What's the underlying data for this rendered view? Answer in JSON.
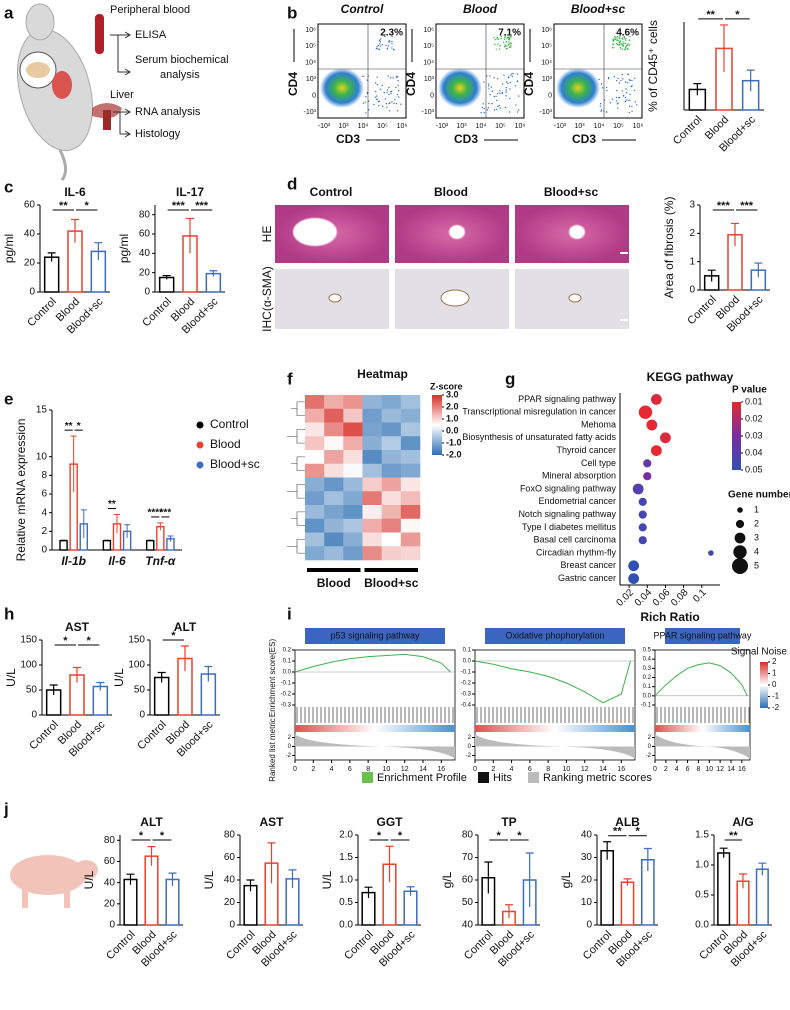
{
  "panel_labels": [
    "a",
    "b",
    "c",
    "d",
    "e",
    "f",
    "g",
    "h",
    "i",
    "j"
  ],
  "schematic": {
    "blood": "Peripheral blood",
    "elisa": "ELISA",
    "serum": [
      "Serum biochemical",
      "analysis"
    ],
    "liver": "Liver",
    "rna": "RNA analysis",
    "histology": "Histology"
  },
  "flow": {
    "titles": [
      "Control",
      "Blood",
      "Blood+sc"
    ],
    "percentages": [
      "2.3%",
      "7.1%",
      "4.6%"
    ],
    "x_label": "CD3",
    "y_label": "CD4",
    "xticks": [
      "-10³",
      "10³",
      "10⁴",
      "10⁵",
      "10⁶"
    ],
    "yticks": [
      "10⁶",
      "10⁵",
      "10⁴",
      "10³",
      "0",
      "-10³"
    ]
  },
  "histology": {
    "columns": [
      "Control",
      "Blood",
      "Blood+sc"
    ],
    "rows": [
      "HE",
      "IHC(α-SMA)"
    ]
  },
  "gsea_legend": [
    "Enrichment Profile",
    "Hits",
    "Ranking metric scores"
  ],
  "signal_noise": {
    "title": "Signal Noise",
    "ticks": [
      2,
      1,
      0,
      -1,
      -2
    ]
  },
  "chart_data": [
    {
      "type": "bar",
      "y_label": "% of CD45⁺ cells",
      "categories": [
        "Control",
        "Blood",
        "Blood+sc"
      ],
      "values": [
        3.5,
        10.5,
        5.0
      ],
      "errors": [
        1.0,
        4.0,
        1.8
      ],
      "colors": [
        "#000000",
        "#e8412c",
        "#3b6cc0"
      ],
      "annotations": [
        "**",
        "*"
      ],
      "ylim": [
        0,
        15
      ]
    },
    {
      "type": "bar",
      "title": "IL-6",
      "y_label": "pg/ml",
      "categories": [
        "Control",
        "Blood",
        "Blood+sc"
      ],
      "values": [
        24,
        42,
        28
      ],
      "errors": [
        3,
        8,
        6
      ],
      "colors": [
        "#000000",
        "#e8412c",
        "#3b6cc0"
      ],
      "annotations": [
        "**",
        "*"
      ],
      "ylim": [
        0,
        60
      ],
      "yticks": [
        0,
        20,
        40,
        60
      ]
    },
    {
      "type": "bar",
      "title": "IL-17",
      "y_label": "pg/ml",
      "categories": [
        "Control",
        "Blood",
        "Blood+sc"
      ],
      "values": [
        15,
        58,
        19
      ],
      "errors": [
        2,
        18,
        3
      ],
      "colors": [
        "#000000",
        "#e8412c",
        "#3b6cc0"
      ],
      "annotations": [
        "***",
        "***"
      ],
      "ylim": [
        0,
        90
      ],
      "yticks": [
        0,
        20,
        40,
        60,
        80
      ]
    },
    {
      "type": "bar",
      "y_label": "Area of fibrosis (%)",
      "categories": [
        "Control",
        "Blood",
        "Blood+sc"
      ],
      "values": [
        0.5,
        1.95,
        0.7
      ],
      "errors": [
        0.2,
        0.4,
        0.25
      ],
      "colors": [
        "#000000",
        "#e8412c",
        "#3b6cc0"
      ],
      "annotations": [
        "***",
        "***"
      ],
      "ylim": [
        0,
        3
      ],
      "yticks": [
        0,
        1,
        2,
        3
      ]
    },
    {
      "type": "grouped_bar",
      "y_label": "Relative mRNA expression",
      "categories": [
        "Il-1b",
        "Il-6",
        "Tnf-α"
      ],
      "series": [
        {
          "name": "Control",
          "color": "#000000",
          "values": [
            1,
            1,
            1
          ],
          "errors": [
            0.05,
            0.05,
            0.05
          ]
        },
        {
          "name": "Blood",
          "color": "#e8412c",
          "values": [
            9.2,
            2.8,
            2.5
          ],
          "errors": [
            3,
            1,
            0.4
          ]
        },
        {
          "name": "Blood+sc",
          "color": "#3b6cc0",
          "values": [
            2.8,
            2.0,
            1.2
          ],
          "errors": [
            1.5,
            0.7,
            0.3
          ]
        }
      ],
      "annotations": [
        [
          "**",
          "*"
        ],
        [
          "**",
          null
        ],
        [
          "****",
          "***"
        ]
      ],
      "ylim": [
        0,
        15
      ],
      "yticks": [
        0,
        2,
        4,
        6,
        8,
        10,
        15
      ]
    },
    {
      "type": "heatmap",
      "title": "Heatmap",
      "colorbar_title": "Z-score",
      "groups": [
        "Blood",
        "Blood+sc"
      ],
      "colorbar_ticks": [
        {
          "value": 3,
          "label": "3.0"
        },
        {
          "value": 2,
          "label": "2.0"
        },
        {
          "value": 1,
          "label": "1.0"
        },
        {
          "value": 0,
          "label": "0.0"
        },
        {
          "value": -1,
          "label": "-1.0"
        },
        {
          "value": -2,
          "label": "-2.0"
        }
      ],
      "values": [
        [
          2.2,
          1.5,
          1.8,
          -0.8,
          -1.0,
          -0.6
        ],
        [
          1.5,
          2.4,
          1.2,
          -1.2,
          -0.7,
          -0.9
        ],
        [
          0.8,
          1.9,
          2.6,
          -1.1,
          -1.3,
          -0.5
        ],
        [
          1.2,
          0.6,
          1.5,
          -0.9,
          -0.4,
          -1.4
        ],
        [
          0.5,
          1.6,
          0.9,
          -1.5,
          -0.8,
          -0.6
        ],
        [
          1.8,
          0.9,
          0.4,
          -0.6,
          -1.2,
          -1.0
        ],
        [
          -0.9,
          -1.3,
          -0.7,
          1.1,
          1.6,
          0.8
        ],
        [
          -1.2,
          -0.6,
          -1.0,
          2.1,
          0.9,
          1.3
        ],
        [
          -0.7,
          -1.1,
          -1.4,
          0.7,
          1.4,
          2.3
        ],
        [
          -1.4,
          -0.8,
          -0.5,
          1.5,
          2.0,
          0.6
        ],
        [
          -0.6,
          -1.5,
          -0.9,
          0.9,
          0.5,
          1.7
        ],
        [
          -1.0,
          -0.7,
          -1.2,
          1.9,
          1.1,
          1.0
        ]
      ]
    },
    {
      "type": "dot",
      "title": "KEGG pathway",
      "x_label": "Rich Ratio",
      "categories": [
        "PPAR signaling pathway",
        "Transcriptional misregulation in cancer",
        "Mehoma",
        "Biosynthesis of unsaturated fatty acids",
        "Thyroid cancer",
        "Cell type",
        "Mineral absorption",
        "FoxO signaling pathway",
        "Endometrial cancer",
        "Notch signaling pathway",
        "Type I diabetes mellitus",
        "Basal cell carcinoma",
        "Circadian rhythm-fly",
        "Breast cancer",
        "Gastric cancer"
      ],
      "values": [
        0.05,
        0.038,
        0.045,
        0.06,
        0.05,
        0.04,
        0.04,
        0.03,
        0.035,
        0.035,
        0.035,
        0.035,
        0.11,
        0.025,
        0.025
      ],
      "p_values": [
        0.012,
        0.008,
        0.01,
        0.012,
        0.01,
        0.035,
        0.03,
        0.04,
        0.045,
        0.045,
        0.045,
        0.045,
        0.045,
        0.05,
        0.05
      ],
      "gene_numbers": [
        3,
        4,
        3,
        3,
        3,
        2,
        2,
        3,
        2,
        2,
        2,
        2,
        1,
        3,
        3
      ],
      "xlim": [
        0.01,
        0.12
      ],
      "xticks": [
        0.02,
        0.04,
        0.06,
        0.08,
        0.1
      ],
      "color_title": "P value",
      "color_ticks": [
        0.01,
        0.02,
        0.03,
        0.04,
        0.05
      ],
      "size_title": "Gene number",
      "size_ticks": [
        1,
        2,
        3,
        4,
        5
      ]
    },
    {
      "type": "bar",
      "title": "AST",
      "y_label": "U/L",
      "categories": [
        "Control",
        "Blood",
        "Blood+sc"
      ],
      "values": [
        50,
        80,
        57
      ],
      "errors": [
        10,
        15,
        8
      ],
      "colors": [
        "#000000",
        "#e8412c",
        "#3b6cc0"
      ],
      "annotations": [
        "*",
        "*"
      ],
      "ylim": [
        0,
        150
      ],
      "yticks": [
        0,
        50,
        100,
        150
      ]
    },
    {
      "type": "bar",
      "title": "ALT",
      "y_label": "U/L",
      "categories": [
        "Control",
        "Blood",
        "Blood+sc"
      ],
      "values": [
        75,
        113,
        82
      ],
      "errors": [
        10,
        25,
        15
      ],
      "colors": [
        "#000000",
        "#e8412c",
        "#3b6cc0"
      ],
      "annotations": [
        "*",
        null
      ],
      "ylim": [
        0,
        150
      ],
      "yticks": [
        0,
        50,
        100,
        150
      ]
    },
    {
      "type": "gsea",
      "title": "p53 signaling pathway",
      "y_label": "Enrichment score(ES)",
      "metric_label": "Ranked list metric",
      "x": [
        0,
        2,
        4,
        6,
        8,
        10,
        12,
        14,
        16,
        17
      ],
      "values": [
        0,
        0.05,
        0.09,
        0.12,
        0.14,
        0.15,
        0.16,
        0.14,
        0.08,
        0
      ],
      "xlim": [
        0,
        17.5
      ],
      "xticks": [
        0,
        2,
        4,
        6,
        8,
        10,
        12,
        14,
        16
      ],
      "ylim": [
        -0.3,
        0.2
      ],
      "yticks": [
        0.2,
        0.1,
        {
          "value": 0,
          "label": "0.0"
        },
        -0.1,
        -0.2,
        -0.3
      ],
      "metric_ticks": [
        2,
        0,
        -2
      ]
    },
    {
      "type": "gsea",
      "title": "Oxidative phophorylation",
      "x": [
        0,
        2,
        4,
        6,
        8,
        10,
        12,
        14,
        16,
        17
      ],
      "values": [
        0,
        -0.03,
        -0.07,
        -0.1,
        -0.14,
        -0.2,
        -0.28,
        -0.38,
        -0.3,
        0
      ],
      "xlim": [
        0,
        17.5
      ],
      "xticks": [
        0,
        2,
        4,
        6,
        8,
        10,
        12,
        14,
        16
      ],
      "ylim": [
        -0.4,
        0.1
      ],
      "yticks": [
        0.1,
        {
          "value": 0,
          "label": "0.0"
        },
        -0.1,
        -0.2,
        -0.3,
        -0.4
      ],
      "metric_ticks": [
        2,
        0,
        -2
      ]
    },
    {
      "type": "gsea",
      "title": "PPAR signaling pathway",
      "x": [
        0,
        2,
        4,
        6,
        8,
        10,
        12,
        14,
        16,
        17
      ],
      "values": [
        0,
        0.12,
        0.22,
        0.3,
        0.34,
        0.36,
        0.33,
        0.25,
        0.12,
        0
      ],
      "xlim": [
        0,
        17.5
      ],
      "xticks": [
        0,
        2,
        4,
        6,
        8,
        10,
        12,
        14,
        16
      ],
      "ylim": [
        -0.1,
        0.5
      ],
      "yticks": [
        0.5,
        0.4,
        0.3,
        0.2,
        0.1,
        {
          "value": 0,
          "label": "0.0"
        },
        -0.1
      ],
      "metric_ticks": [
        2,
        0,
        -2
      ]
    },
    {
      "type": "bar",
      "title": "ALT",
      "y_label": "U/L",
      "categories": [
        "Control",
        "Blood",
        "Blood+sc"
      ],
      "values": [
        43,
        65,
        43
      ],
      "errors": [
        5,
        9,
        6
      ],
      "colors": [
        "#000000",
        "#e8412c",
        "#3b6cc0"
      ],
      "annotations": [
        "*",
        "*"
      ],
      "ylim": [
        0,
        85
      ],
      "yticks": [
        0,
        20,
        40,
        60,
        80
      ]
    },
    {
      "type": "bar",
      "title": "AST",
      "y_label": "U/L",
      "categories": [
        "Control",
        "Blood",
        "Blood+sc"
      ],
      "values": [
        35,
        55,
        41
      ],
      "errors": [
        5,
        18,
        8
      ],
      "colors": [
        "#000000",
        "#e8412c",
        "#3b6cc0"
      ],
      "annotations": [
        null,
        null
      ],
      "ylim": [
        0,
        80
      ],
      "yticks": [
        0,
        20,
        40,
        60,
        80
      ]
    },
    {
      "type": "bar",
      "title": "GGT",
      "y_label": "U/L",
      "categories": [
        "Control",
        "Blood",
        "Blood+sc"
      ],
      "values": [
        0.72,
        1.35,
        0.75
      ],
      "errors": [
        0.12,
        0.4,
        0.1
      ],
      "colors": [
        "#000000",
        "#e8412c",
        "#3b6cc0"
      ],
      "annotations": [
        "*",
        "*"
      ],
      "ylim": [
        0,
        2
      ],
      "yticks": [
        {
          "value": 0,
          "label": "0.0"
        },
        0.5,
        {
          "value": 1,
          "label": "1.0"
        },
        1.5,
        {
          "value": 2,
          "label": "2.0"
        }
      ]
    },
    {
      "type": "bar",
      "title": "TP",
      "y_label": "g/L",
      "categories": [
        "Control",
        "Blood",
        "Blood+sc"
      ],
      "values": [
        61,
        46,
        60
      ],
      "errors": [
        7,
        3,
        12
      ],
      "colors": [
        "#000000",
        "#e8412c",
        "#3b6cc0"
      ],
      "annotations": [
        "*",
        "*"
      ],
      "ylim": [
        40,
        80
      ],
      "yticks": [
        40,
        50,
        60,
        70,
        80
      ]
    },
    {
      "type": "bar",
      "title": "ALB",
      "y_label": "g/L",
      "categories": [
        "Control",
        "Blood",
        "Blood+sc"
      ],
      "values": [
        33,
        19,
        29
      ],
      "errors": [
        4,
        1.5,
        5
      ],
      "colors": [
        "#000000",
        "#e8412c",
        "#3b6cc0"
      ],
      "annotations": [
        "**",
        "*"
      ],
      "ylim": [
        0,
        40
      ],
      "yticks": [
        0,
        10,
        20,
        30,
        40
      ]
    },
    {
      "type": "bar",
      "title": "A/G",
      "y_label": "",
      "categories": [
        "Control",
        "Blood",
        "Blood+sc"
      ],
      "values": [
        1.2,
        0.73,
        0.93
      ],
      "errors": [
        0.08,
        0.12,
        0.1
      ],
      "colors": [
        "#000000",
        "#e8412c",
        "#3b6cc0"
      ],
      "annotations": [
        "**",
        null
      ],
      "ylim": [
        0,
        1.5
      ],
      "yticks": [
        {
          "value": 0,
          "label": "0.0"
        },
        0.5,
        {
          "value": 1,
          "label": "1.0"
        },
        1.5
      ]
    }
  ]
}
